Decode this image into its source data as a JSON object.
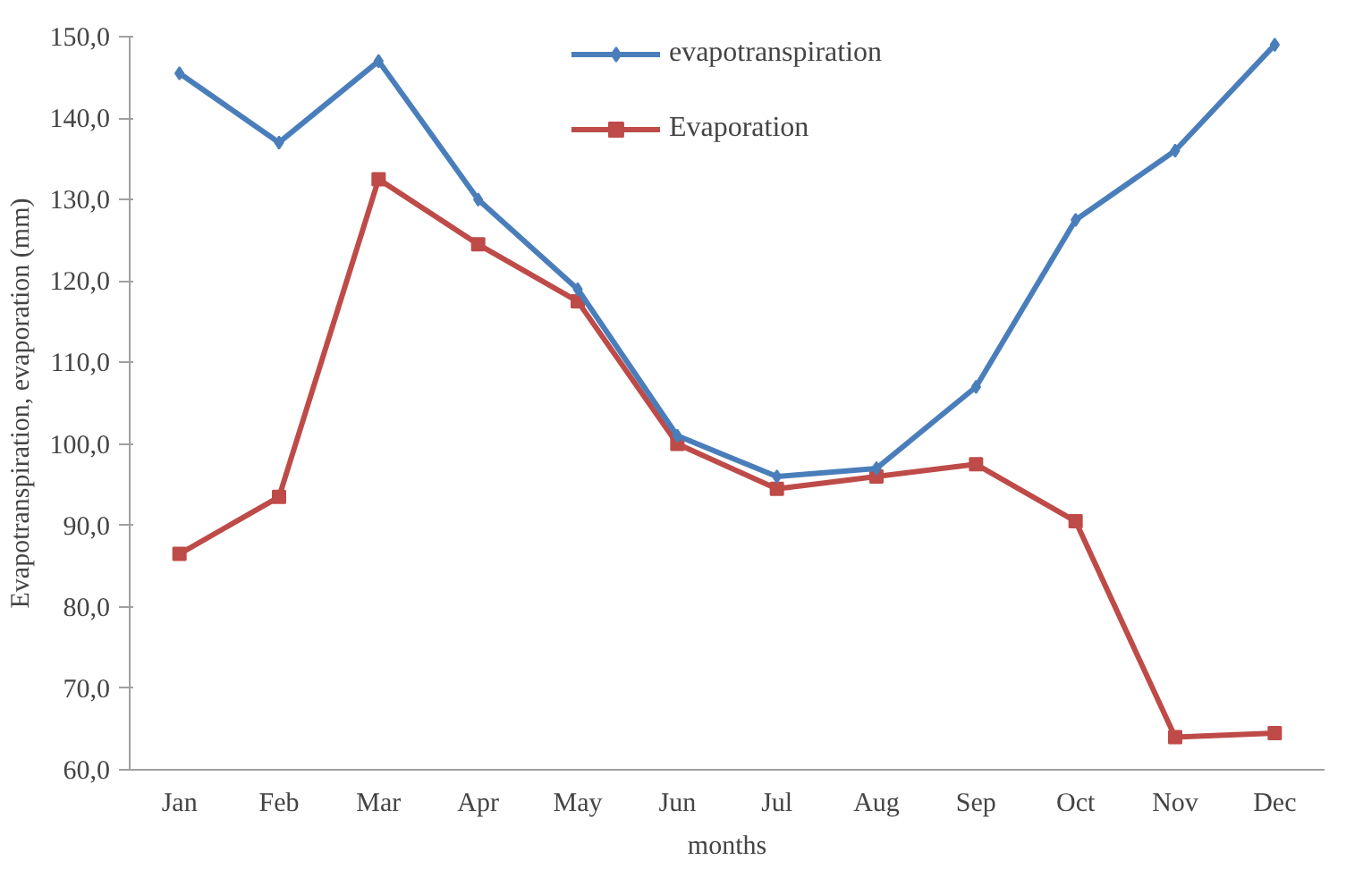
{
  "chart_data": {
    "type": "line",
    "xlabel": "months",
    "ylabel": "Evapotranspiration, evaporation (mm)",
    "categories": [
      "Jan",
      "Feb",
      "Mar",
      "Apr",
      "May",
      "Jun",
      "Jul",
      "Aug",
      "Sep",
      "Oct",
      "Nov",
      "Dec"
    ],
    "series": [
      {
        "name": "evapotranspiration",
        "color": "#4a7ebb",
        "marker": "diamond",
        "values": [
          145.5,
          137,
          147,
          130,
          119,
          101,
          96,
          97,
          107,
          127.5,
          136,
          149
        ]
      },
      {
        "name": "Evaporation",
        "color": "#be4b48",
        "marker": "square",
        "values": [
          86.5,
          93.5,
          132.5,
          124.5,
          117.5,
          100,
          94.5,
          96,
          97.5,
          90.5,
          64,
          64.5
        ]
      }
    ],
    "ylim": [
      60,
      150
    ],
    "yticks": [
      {
        "value": 60,
        "label": "60,0"
      },
      {
        "value": 70,
        "label": "70,0"
      },
      {
        "value": 80,
        "label": "80,0"
      },
      {
        "value": 90,
        "label": "90,0"
      },
      {
        "value": 100,
        "label": "100,0"
      },
      {
        "value": 110,
        "label": "110,0"
      },
      {
        "value": 120,
        "label": "120,0"
      },
      {
        "value": 130,
        "label": "130,0"
      },
      {
        "value": 140,
        "label": "140,0"
      },
      {
        "value": 150,
        "label": "150,0"
      }
    ],
    "grid": false,
    "legend": "top",
    "line_style": "solid"
  }
}
